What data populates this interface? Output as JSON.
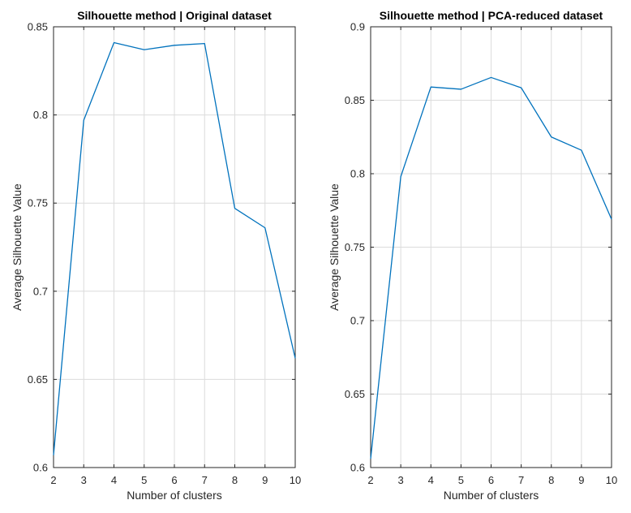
{
  "colors": {
    "series": "#0072BD",
    "axis": "#262626",
    "grid": "#dcdcdc",
    "background": "#ffffff"
  },
  "chart_data": [
    {
      "type": "line",
      "title": "Silhouette method | Original dataset",
      "xlabel": "Number of clusters",
      "ylabel": "Average Silhouette Value",
      "xlim": [
        2,
        10
      ],
      "ylim": [
        0.6,
        0.85
      ],
      "xticks": [
        2,
        3,
        4,
        5,
        6,
        7,
        8,
        9,
        10
      ],
      "yticks": [
        0.6,
        0.65,
        0.7,
        0.75,
        0.8,
        0.85
      ],
      "ytick_labels": [
        "0.6",
        "0.65",
        "0.7",
        "0.75",
        "0.8",
        "0.85"
      ],
      "grid": true,
      "x": [
        2,
        3,
        4,
        5,
        6,
        7,
        8,
        9,
        10
      ],
      "series": [
        {
          "values": [
            0.607,
            0.797,
            0.841,
            0.837,
            0.8395,
            0.8405,
            0.747,
            0.736,
            0.662
          ]
        }
      ]
    },
    {
      "type": "line",
      "title": "Silhouette method | PCA-reduced dataset",
      "xlabel": "Number of clusters",
      "ylabel": "Average Silhouette Value",
      "xlim": [
        2,
        10
      ],
      "ylim": [
        0.6,
        0.9
      ],
      "xticks": [
        2,
        3,
        4,
        5,
        6,
        7,
        8,
        9,
        10
      ],
      "yticks": [
        0.6,
        0.65,
        0.7,
        0.75,
        0.8,
        0.85,
        0.9
      ],
      "ytick_labels": [
        "0.6",
        "0.65",
        "0.7",
        "0.75",
        "0.8",
        "0.85",
        "0.9"
      ],
      "grid": true,
      "x": [
        2,
        3,
        4,
        5,
        6,
        7,
        8,
        9,
        10
      ],
      "series": [
        {
          "values": [
            0.606,
            0.798,
            0.859,
            0.8575,
            0.8655,
            0.8585,
            0.825,
            0.816,
            0.769
          ]
        }
      ]
    }
  ]
}
